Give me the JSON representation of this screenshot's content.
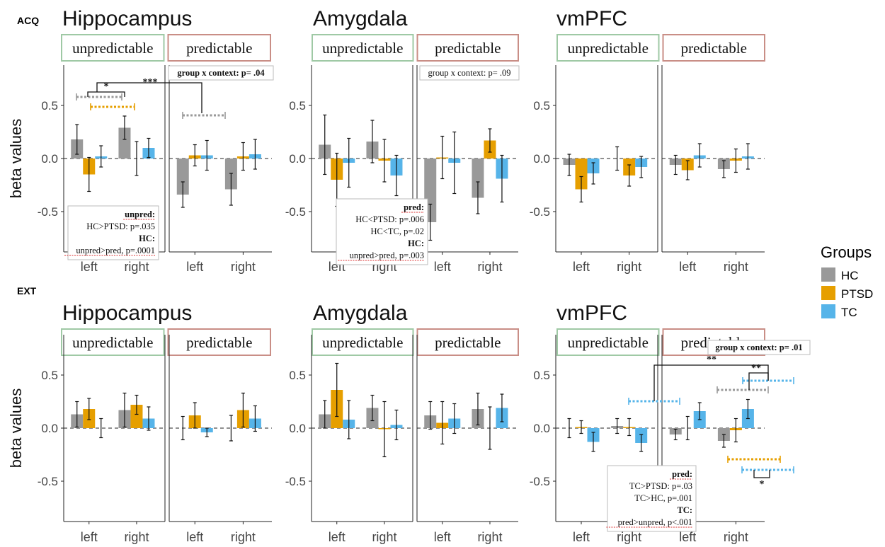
{
  "figure": {
    "row_labels": [
      "ACQ",
      "EXT"
    ],
    "y_axis_label": "beta values",
    "legend": {
      "title": "Groups",
      "entries": [
        {
          "name": "HC",
          "color": "#999999"
        },
        {
          "name": "PTSD",
          "color": "#E69F00"
        },
        {
          "name": "TC",
          "color": "#56B4E9"
        }
      ]
    },
    "context_labels": {
      "unpredictable": "unpredictable",
      "predictable": "predictable"
    },
    "context_colors": {
      "unpredictable": "#9fc9a5",
      "predictable": "#c98e86"
    }
  },
  "chart_data": [
    {
      "type": "bar",
      "row": "ACQ",
      "title": "Hippocampus",
      "ylabel": "beta values",
      "ylim": [
        -0.88,
        0.88
      ],
      "yticks": [
        -0.5,
        0.0,
        0.5
      ],
      "categories": [
        "left",
        "right",
        "left",
        "right"
      ],
      "contexts": [
        "unpredictable",
        "unpredictable",
        "predictable",
        "predictable"
      ],
      "series": [
        {
          "name": "HC",
          "values": [
            0.18,
            0.29,
            -0.34,
            -0.29
          ],
          "errors": [
            0.14,
            0.11,
            0.12,
            0.15
          ]
        },
        {
          "name": "PTSD",
          "values": [
            -0.15,
            0.0,
            0.03,
            0.02
          ],
          "errors": [
            0.16,
            0.16,
            0.1,
            0.13
          ]
        },
        {
          "name": "TC",
          "values": [
            0.02,
            0.1,
            0.03,
            0.04
          ],
          "errors": [
            0.1,
            0.09,
            0.14,
            0.14
          ]
        }
      ],
      "annotations": [
        {
          "type": "box",
          "lines": [
            {
              "text": "group x context: p= .04",
              "bold": true
            }
          ]
        },
        {
          "type": "box",
          "lines": [
            {
              "text": "unpred:",
              "bold": true,
              "underline": true
            },
            {
              "text": "HC>PTSD:  p=.035"
            },
            {
              "text": "HC:",
              "bold": true
            },
            {
              "text": "unpred>pred, p=.0001",
              "underline": true
            }
          ]
        }
      ],
      "significance": [
        "*",
        "***"
      ]
    },
    {
      "type": "bar",
      "row": "ACQ",
      "title": "Amygdala",
      "ylabel": "",
      "ylim": [
        -0.88,
        0.88
      ],
      "yticks": [
        -0.5,
        0.0,
        0.5
      ],
      "categories": [
        "left",
        "right",
        "left",
        "right"
      ],
      "contexts": [
        "unpredictable",
        "unpredictable",
        "predictable",
        "predictable"
      ],
      "series": [
        {
          "name": "HC",
          "values": [
            0.13,
            0.16,
            -0.6,
            -0.37
          ],
          "errors": [
            0.28,
            0.2,
            0.17,
            0.15
          ]
        },
        {
          "name": "PTSD",
          "values": [
            -0.2,
            -0.02,
            0.01,
            0.17
          ],
          "errors": [
            0.25,
            0.2,
            0.2,
            0.11
          ]
        },
        {
          "name": "TC",
          "values": [
            -0.04,
            -0.16,
            -0.04,
            -0.19
          ],
          "errors": [
            0.23,
            0.19,
            0.29,
            0.22
          ]
        }
      ],
      "annotations": [
        {
          "type": "box",
          "lines": [
            {
              "text": "group x context: p= .09"
            }
          ]
        },
        {
          "type": "box",
          "lines": [
            {
              "text": "pred:",
              "bold": true,
              "underline": true
            },
            {
              "text": "HC<PTSD:  p=.006"
            },
            {
              "text": "HC<TC, p=.02"
            },
            {
              "text": "HC:",
              "bold": true
            },
            {
              "text": "unpred>pred, p=.003",
              "underline": true
            }
          ]
        }
      ],
      "significance": []
    },
    {
      "type": "bar",
      "row": "ACQ",
      "title": "vmPFC",
      "ylabel": "",
      "ylim": [
        -0.88,
        0.88
      ],
      "yticks": [
        -0.5,
        0.0,
        0.5
      ],
      "categories": [
        "left",
        "right",
        "left",
        "right"
      ],
      "contexts": [
        "unpredictable",
        "unpredictable",
        "predictable",
        "predictable"
      ],
      "series": [
        {
          "name": "HC",
          "values": [
            -0.06,
            0.0,
            -0.06,
            -0.1
          ],
          "errors": [
            0.1,
            0.11,
            0.09,
            0.08
          ]
        },
        {
          "name": "PTSD",
          "values": [
            -0.29,
            -0.16,
            -0.11,
            -0.02
          ],
          "errors": [
            0.12,
            0.1,
            0.09,
            0.11
          ]
        },
        {
          "name": "TC",
          "values": [
            -0.14,
            -0.08,
            0.03,
            0.02
          ],
          "errors": [
            0.1,
            0.1,
            0.11,
            0.12
          ]
        }
      ],
      "annotations": [],
      "significance": []
    },
    {
      "type": "bar",
      "row": "EXT",
      "title": "Hippocampus",
      "ylabel": "beta values",
      "ylim": [
        -0.88,
        0.88
      ],
      "yticks": [
        -0.5,
        0.0,
        0.5
      ],
      "categories": [
        "left",
        "right",
        "left",
        "right"
      ],
      "contexts": [
        "unpredictable",
        "unpredictable",
        "predictable",
        "predictable"
      ],
      "series": [
        {
          "name": "HC",
          "values": [
            0.13,
            0.17,
            0.0,
            0.0
          ],
          "errors": [
            0.12,
            0.16,
            0.11,
            0.12
          ]
        },
        {
          "name": "PTSD",
          "values": [
            0.18,
            0.22,
            0.12,
            0.17
          ],
          "errors": [
            0.1,
            0.09,
            0.12,
            0.16
          ]
        },
        {
          "name": "TC",
          "values": [
            0.0,
            0.09,
            -0.04,
            0.09
          ],
          "errors": [
            0.09,
            0.11,
            0.04,
            0.12
          ]
        }
      ],
      "annotations": [],
      "significance": []
    },
    {
      "type": "bar",
      "row": "EXT",
      "title": "Amygdala",
      "ylabel": "",
      "ylim": [
        -0.88,
        0.88
      ],
      "yticks": [
        -0.5,
        0.0,
        0.5
      ],
      "categories": [
        "left",
        "right",
        "left",
        "right"
      ],
      "contexts": [
        "unpredictable",
        "unpredictable",
        "predictable",
        "predictable"
      ],
      "series": [
        {
          "name": "HC",
          "values": [
            0.13,
            0.19,
            0.12,
            0.18
          ],
          "errors": [
            0.13,
            0.12,
            0.13,
            0.15
          ]
        },
        {
          "name": "PTSD",
          "values": [
            0.36,
            -0.01,
            0.05,
            0.0
          ],
          "errors": [
            0.25,
            0.26,
            0.2,
            0.2
          ]
        },
        {
          "name": "TC",
          "values": [
            0.08,
            0.03,
            0.09,
            0.19
          ],
          "errors": [
            0.18,
            0.14,
            0.14,
            0.13
          ]
        }
      ],
      "annotations": [],
      "significance": []
    },
    {
      "type": "bar",
      "row": "EXT",
      "title": "vmPFC",
      "ylabel": "",
      "ylim": [
        -0.88,
        0.88
      ],
      "yticks": [
        -0.5,
        0.0,
        0.5
      ],
      "categories": [
        "left",
        "right",
        "left",
        "right"
      ],
      "contexts": [
        "unpredictable",
        "unpredictable",
        "predictable",
        "predictable"
      ],
      "series": [
        {
          "name": "HC",
          "values": [
            0.0,
            0.02,
            -0.06,
            -0.12
          ],
          "errors": [
            0.09,
            0.07,
            0.05,
            0.06
          ]
        },
        {
          "name": "PTSD",
          "values": [
            0.01,
            0.01,
            0.0,
            -0.02
          ],
          "errors": [
            0.06,
            0.08,
            0.11,
            0.11
          ]
        },
        {
          "name": "TC",
          "values": [
            -0.13,
            -0.14,
            0.16,
            0.18
          ],
          "errors": [
            0.09,
            0.08,
            0.08,
            0.09
          ]
        }
      ],
      "annotations": [
        {
          "type": "box",
          "lines": [
            {
              "text": "group x context: p= .01",
              "bold": true
            }
          ]
        },
        {
          "type": "box",
          "lines": [
            {
              "text": "pred:",
              "bold": true,
              "underline": true
            },
            {
              "text": "TC>PTSD:  p=.03"
            },
            {
              "text": "TC>HC, p=.001"
            },
            {
              "text": "TC:",
              "bold": true
            },
            {
              "text": "pred>unpred, p<.001",
              "underline": true
            }
          ]
        }
      ],
      "significance": [
        "**",
        "**",
        "*"
      ]
    }
  ]
}
